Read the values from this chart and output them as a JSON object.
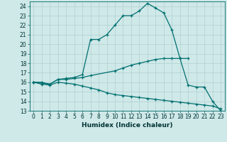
{
  "title": "",
  "xlabel": "Humidex (Indice chaleur)",
  "xlim": [
    -0.5,
    23.5
  ],
  "ylim": [
    13,
    24.5
  ],
  "yticks": [
    13,
    14,
    15,
    16,
    17,
    18,
    19,
    20,
    21,
    22,
    23,
    24
  ],
  "xticks": [
    0,
    1,
    2,
    3,
    4,
    5,
    6,
    7,
    8,
    9,
    10,
    11,
    12,
    13,
    14,
    15,
    16,
    17,
    18,
    19,
    20,
    21,
    22,
    23
  ],
  "bg_color": "#cfe8e8",
  "grid_color": "#b0d0d0",
  "line_color": "#007070",
  "line1_x": [
    0,
    1,
    2,
    3,
    4,
    5,
    6,
    7,
    8,
    9,
    10,
    11,
    12,
    13,
    14,
    15,
    16,
    17,
    18,
    19,
    20,
    21,
    22,
    23
  ],
  "line1_y": [
    16.0,
    16.0,
    15.8,
    16.3,
    16.4,
    16.5,
    16.8,
    20.5,
    20.5,
    21.0,
    22.0,
    23.0,
    23.0,
    23.5,
    24.3,
    23.8,
    23.3,
    21.5,
    18.5,
    15.7,
    15.5,
    15.5,
    14.0,
    13.0
  ],
  "line2_x": [
    0,
    2,
    3,
    4,
    5,
    6,
    7,
    10,
    11,
    12,
    13,
    14,
    15,
    16,
    17,
    18,
    19
  ],
  "line2_y": [
    16.0,
    15.8,
    16.3,
    16.3,
    16.4,
    16.5,
    16.7,
    17.2,
    17.5,
    17.8,
    18.0,
    18.2,
    18.4,
    18.5,
    18.5,
    18.5,
    18.5
  ],
  "line3_x": [
    0,
    1,
    2,
    3,
    4,
    5,
    6,
    7,
    8,
    9,
    10,
    11,
    12,
    13,
    14,
    15,
    16,
    17,
    18,
    19,
    20,
    21,
    22,
    23
  ],
  "line3_y": [
    16.0,
    15.8,
    15.7,
    16.0,
    15.9,
    15.8,
    15.6,
    15.4,
    15.2,
    14.9,
    14.7,
    14.6,
    14.5,
    14.4,
    14.3,
    14.2,
    14.1,
    14.0,
    13.9,
    13.8,
    13.7,
    13.6,
    13.5,
    13.2
  ]
}
